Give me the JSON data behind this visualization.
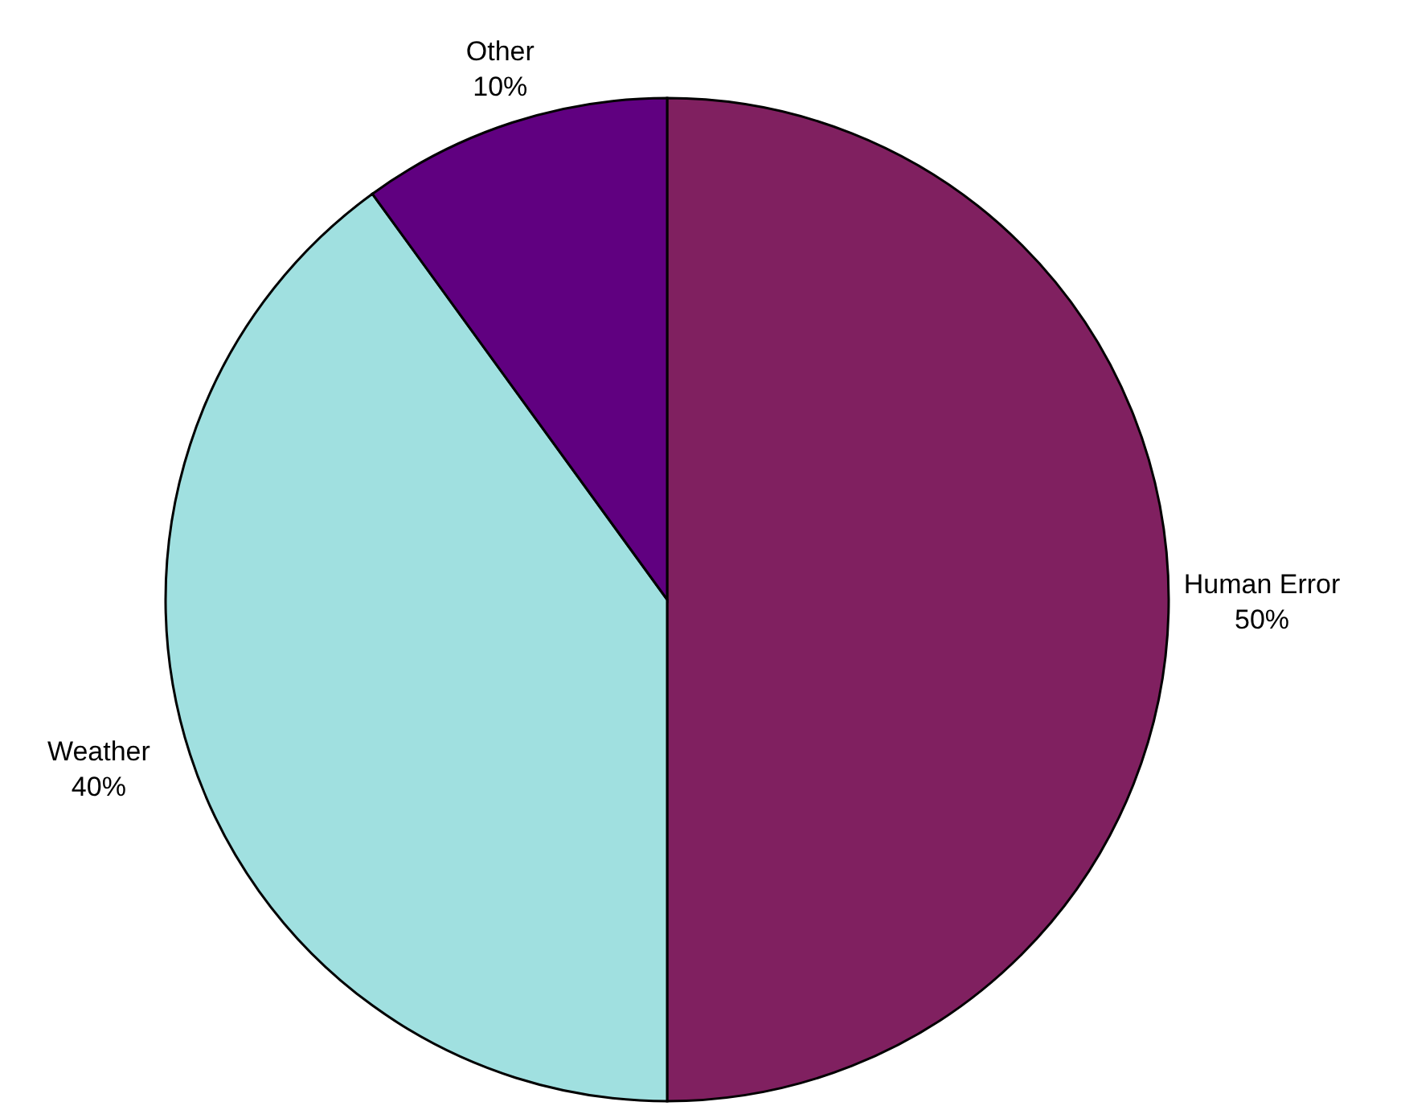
{
  "chart_data": {
    "type": "pie",
    "categories": [
      "Human Error",
      "Weather",
      "Other"
    ],
    "values": [
      50,
      40,
      10
    ],
    "value_labels": [
      "50%",
      "40%",
      "10%"
    ],
    "colors": [
      "#802060",
      "#a0e0e0",
      "#600080"
    ],
    "legend": false
  }
}
